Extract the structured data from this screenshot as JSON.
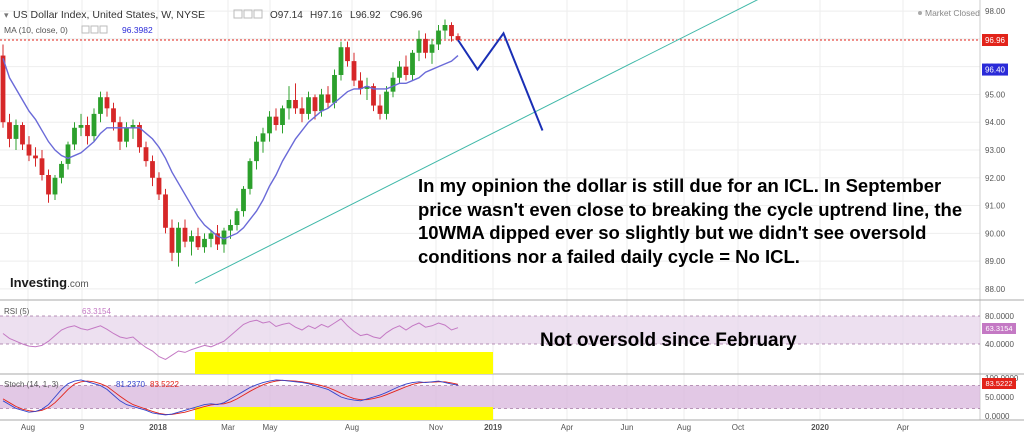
{
  "header": {
    "symbol_title": "US Dollar Index, United States, W, NYSE",
    "ohlc": [
      {
        "key": "O",
        "value": "97.14"
      },
      {
        "key": "H",
        "value": "97.16"
      },
      {
        "key": "L",
        "value": "96.92"
      },
      {
        "key": "C",
        "value": "96.96"
      }
    ],
    "ma_label": "MA (10, close, 0)",
    "ma_value": "96.3982",
    "market_status": "Market Closed"
  },
  "logo": {
    "brand": "Investing",
    "domain": ".com"
  },
  "annotations": {
    "opinion_text": "In my opinion the dollar is still due for an ICL. In September price wasn't even close to breaking the cycle uptrend line, the 10WMA dipped ever so slightly but we didn't see oversold conditions nor a failed daily cycle = No ICL.",
    "oversold_text": "Not oversold since February"
  },
  "colors": {
    "up_candle": "#2ca02c",
    "down_candle": "#d62728",
    "ma_line": "#6a6ad8",
    "projection": "#1a2fb5",
    "trendline": "#3fb8a8",
    "price_tag": "#e2231a",
    "ma_tag": "#2a2ad8",
    "rsi_line": "#c479c4",
    "stoch_k": "#3344cc",
    "stoch_d": "#e2231a",
    "highlight": "#ffff00",
    "band": "#e6d3ea"
  },
  "chart_data": [
    {
      "type": "candlestick",
      "x_ticks": [
        "Aug",
        "9",
        "2018",
        "Mar",
        "May",
        "Aug",
        "Nov",
        "2019",
        "Apr",
        "Jun",
        "Aug",
        "Oct",
        "2020",
        "Apr"
      ],
      "y_ticks": [
        "88.00",
        "89.00",
        "90.00",
        "91.00",
        "92.00",
        "93.00",
        "94.00",
        "95.00",
        "96.00",
        "97.00",
        "98.00"
      ],
      "ylim": [
        87.6,
        98.4
      ],
      "last_price": "96.96",
      "ma_last": "96.40",
      "candles": [
        [
          96.4,
          96.8,
          93.8,
          94.0
        ],
        [
          94.0,
          94.3,
          93.1,
          93.4
        ],
        [
          93.4,
          94.1,
          93.0,
          93.9
        ],
        [
          93.9,
          94.0,
          93.0,
          93.2
        ],
        [
          93.2,
          93.5,
          92.6,
          92.8
        ],
        [
          92.8,
          93.1,
          92.4,
          92.7
        ],
        [
          92.7,
          93.0,
          91.9,
          92.1
        ],
        [
          92.1,
          92.3,
          91.1,
          91.4
        ],
        [
          91.4,
          92.1,
          91.2,
          92.0
        ],
        [
          92.0,
          92.6,
          91.8,
          92.5
        ],
        [
          92.5,
          93.3,
          92.3,
          93.2
        ],
        [
          93.2,
          94.0,
          93.0,
          93.8
        ],
        [
          93.8,
          94.3,
          93.5,
          93.9
        ],
        [
          93.9,
          94.2,
          93.2,
          93.5
        ],
        [
          93.5,
          94.5,
          93.3,
          94.3
        ],
        [
          94.3,
          95.1,
          94.0,
          94.9
        ],
        [
          94.9,
          95.1,
          94.2,
          94.5
        ],
        [
          94.5,
          94.7,
          93.7,
          94.0
        ],
        [
          94.0,
          94.2,
          93.0,
          93.3
        ],
        [
          93.3,
          94.0,
          93.1,
          93.8
        ],
        [
          93.8,
          94.1,
          93.4,
          93.9
        ],
        [
          93.9,
          94.0,
          92.9,
          93.1
        ],
        [
          93.1,
          93.3,
          92.4,
          92.6
        ],
        [
          92.6,
          92.8,
          91.7,
          92.0
        ],
        [
          92.0,
          92.2,
          91.2,
          91.4
        ],
        [
          91.4,
          91.6,
          90.0,
          90.2
        ],
        [
          90.2,
          90.5,
          89.0,
          89.3
        ],
        [
          89.3,
          90.4,
          88.8,
          90.2
        ],
        [
          90.2,
          90.5,
          89.5,
          89.7
        ],
        [
          89.7,
          90.1,
          89.2,
          89.9
        ],
        [
          89.9,
          90.2,
          89.4,
          89.5
        ],
        [
          89.5,
          90.0,
          89.3,
          89.8
        ],
        [
          89.8,
          90.1,
          89.5,
          90.0
        ],
        [
          90.0,
          90.3,
          89.4,
          89.6
        ],
        [
          89.6,
          90.2,
          89.3,
          90.1
        ],
        [
          90.1,
          90.5,
          89.8,
          90.3
        ],
        [
          90.3,
          90.9,
          90.1,
          90.8
        ],
        [
          90.8,
          91.7,
          90.6,
          91.6
        ],
        [
          91.6,
          92.7,
          91.4,
          92.6
        ],
        [
          92.6,
          93.5,
          92.3,
          93.3
        ],
        [
          93.3,
          93.8,
          92.9,
          93.6
        ],
        [
          93.6,
          94.4,
          93.3,
          94.2
        ],
        [
          94.2,
          94.5,
          93.7,
          93.9
        ],
        [
          93.9,
          94.6,
          93.6,
          94.5
        ],
        [
          94.5,
          95.3,
          94.1,
          94.8
        ],
        [
          94.8,
          95.4,
          94.3,
          94.5
        ],
        [
          94.5,
          94.9,
          94.0,
          94.3
        ],
        [
          94.3,
          95.1,
          94.1,
          94.9
        ],
        [
          94.9,
          95.0,
          94.1,
          94.4
        ],
        [
          94.4,
          95.2,
          94.2,
          95.0
        ],
        [
          95.0,
          95.3,
          94.5,
          94.7
        ],
        [
          94.7,
          95.9,
          94.5,
          95.7
        ],
        [
          95.7,
          96.9,
          95.5,
          96.7
        ],
        [
          96.7,
          96.9,
          96.0,
          96.2
        ],
        [
          96.2,
          96.5,
          95.3,
          95.5
        ],
        [
          95.5,
          95.8,
          95.0,
          95.2
        ],
        [
          95.2,
          95.6,
          94.8,
          95.3
        ],
        [
          95.3,
          95.4,
          94.4,
          94.6
        ],
        [
          94.6,
          95.0,
          94.1,
          94.3
        ],
        [
          94.3,
          95.3,
          94.1,
          95.1
        ],
        [
          95.1,
          95.8,
          94.9,
          95.6
        ],
        [
          95.6,
          96.2,
          95.4,
          96.0
        ],
        [
          96.0,
          96.4,
          95.5,
          95.7
        ],
        [
          95.7,
          96.6,
          95.5,
          96.5
        ],
        [
          96.5,
          97.3,
          96.2,
          97.0
        ],
        [
          97.0,
          97.2,
          96.3,
          96.5
        ],
        [
          96.5,
          97.0,
          96.1,
          96.8
        ],
        [
          96.8,
          97.5,
          96.6,
          97.3
        ],
        [
          97.3,
          97.7,
          97.0,
          97.5
        ],
        [
          97.5,
          97.6,
          96.9,
          97.1
        ],
        [
          97.1,
          97.2,
          96.9,
          96.96
        ]
      ],
      "ma_values": [
        96.3,
        95.6,
        95.2,
        94.8,
        94.4,
        94.1,
        93.7,
        93.3,
        93.0,
        92.8,
        92.7,
        92.8,
        92.9,
        93.1,
        93.3,
        93.6,
        93.8,
        93.8,
        93.8,
        93.8,
        93.8,
        93.8,
        93.6,
        93.4,
        93.1,
        92.7,
        92.2,
        91.8,
        91.4,
        91.0,
        90.6,
        90.3,
        90.1,
        89.9,
        89.8,
        89.9,
        90.0,
        90.2,
        90.5,
        90.8,
        91.2,
        91.7,
        92.1,
        92.6,
        93.0,
        93.4,
        93.7,
        94.0,
        94.2,
        94.4,
        94.5,
        94.7,
        94.9,
        95.1,
        95.2,
        95.2,
        95.3,
        95.2,
        95.2,
        95.2,
        95.3,
        95.4,
        95.4,
        95.5,
        95.6,
        95.8,
        95.9,
        96.0,
        96.1,
        96.2,
        96.4
      ],
      "projection_path": [
        [
          96.96,
          0
        ],
        [
          95.9,
          3
        ],
        [
          97.2,
          7
        ],
        [
          93.7,
          13
        ]
      ],
      "trendline": {
        "start": [
          0,
          88.2
        ],
        "end": [
          121,
          98.6
        ]
      }
    },
    {
      "type": "line",
      "label": "RSI (5)",
      "value": "63.3154",
      "y_ticks": [
        "40.0000",
        "80.0000"
      ],
      "overbought": 80,
      "oversold": 40,
      "values": [
        55,
        48,
        44,
        40,
        37,
        36,
        38,
        44,
        52,
        60,
        64,
        66,
        62,
        60,
        63,
        66,
        61,
        55,
        50,
        48,
        50,
        42,
        35,
        30,
        22,
        18,
        24,
        30,
        28,
        32,
        35,
        38,
        36,
        40,
        44,
        52,
        60,
        68,
        72,
        74,
        70,
        72,
        65,
        68,
        70,
        64,
        60,
        66,
        62,
        68,
        64,
        70,
        76,
        66,
        58,
        52,
        54,
        50,
        48,
        56,
        62,
        66,
        60,
        66,
        70,
        64,
        66,
        70,
        67,
        60,
        63.3
      ]
    },
    {
      "type": "line",
      "label": "Stoch (14, 1, 3)",
      "k_value": "81.2370",
      "d_value": "83.5222",
      "y_ticks": [
        "0.0000",
        "50.0000",
        "100.0000"
      ],
      "overbought": 80,
      "oversold": 20,
      "k_values": [
        40,
        30,
        20,
        15,
        10,
        12,
        18,
        30,
        50,
        70,
        85,
        92,
        95,
        90,
        85,
        80,
        70,
        55,
        40,
        30,
        25,
        20,
        15,
        8,
        5,
        3,
        5,
        10,
        15,
        20,
        25,
        30,
        32,
        30,
        35,
        45,
        55,
        65,
        75,
        82,
        88,
        92,
        95,
        94,
        92,
        90,
        88,
        85,
        80,
        75,
        70,
        60,
        50,
        45,
        42,
        40,
        45,
        50,
        55,
        62,
        70,
        78,
        84,
        88,
        90,
        88,
        90,
        92,
        88,
        84,
        81.2
      ],
      "d_values": [
        45,
        35,
        25,
        18,
        14,
        12,
        15,
        22,
        35,
        52,
        70,
        84,
        90,
        92,
        90,
        85,
        78,
        65,
        52,
        40,
        30,
        24,
        18,
        12,
        7,
        4,
        4,
        7,
        10,
        15,
        20,
        25,
        29,
        31,
        32,
        37,
        45,
        55,
        65,
        74,
        82,
        88,
        92,
        94,
        93,
        92,
        90,
        87,
        84,
        80,
        75,
        68,
        60,
        52,
        46,
        43,
        43,
        46,
        50,
        56,
        63,
        70,
        77,
        83,
        87,
        89,
        89,
        90,
        90,
        87,
        83.5
      ]
    }
  ]
}
